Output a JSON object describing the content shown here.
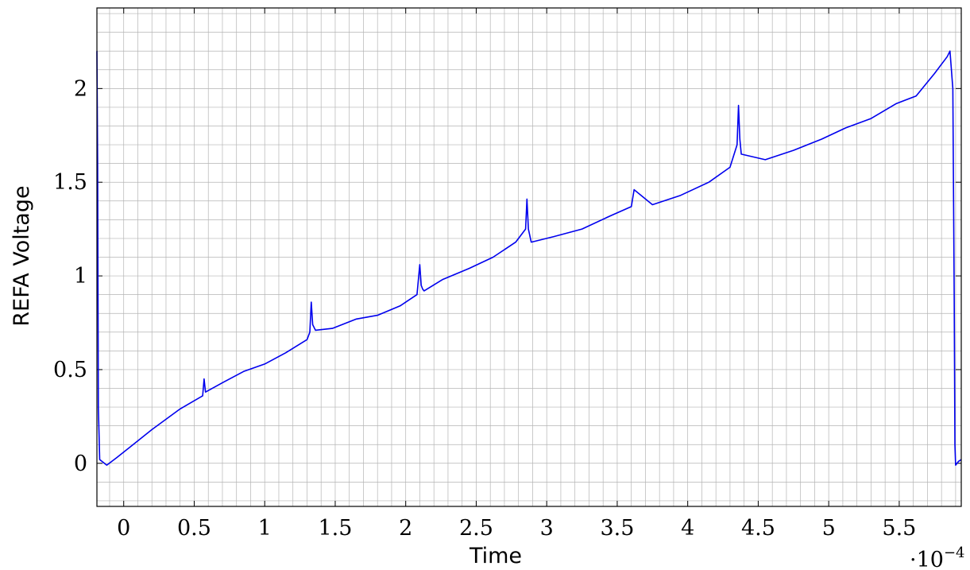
{
  "chart_data": {
    "type": "line",
    "xlabel": "Time",
    "ylabel": "REFA Voltage",
    "x_scale_label": "·10",
    "x_scale_exponent": "−4",
    "x_scale_factor": 0.0001,
    "xlim": [
      -1.9e-05,
      0.000594
    ],
    "ylim": [
      -0.23,
      2.43
    ],
    "grid": true,
    "legend": "none",
    "x_ticks": [
      {
        "value": 0,
        "label": "0"
      },
      {
        "value": 5e-05,
        "label": "0.5"
      },
      {
        "value": 0.0001,
        "label": "1"
      },
      {
        "value": 0.00015,
        "label": "1.5"
      },
      {
        "value": 0.0002,
        "label": "2"
      },
      {
        "value": 0.00025,
        "label": "2.5"
      },
      {
        "value": 0.0003,
        "label": "3"
      },
      {
        "value": 0.00035,
        "label": "3.5"
      },
      {
        "value": 0.0004,
        "label": "4"
      },
      {
        "value": 0.00045,
        "label": "4.5"
      },
      {
        "value": 0.0005,
        "label": "5"
      },
      {
        "value": 0.00055,
        "label": "5.5"
      }
    ],
    "y_ticks": [
      {
        "value": 0,
        "label": "0"
      },
      {
        "value": 0.5,
        "label": "0.5"
      },
      {
        "value": 1,
        "label": "1"
      },
      {
        "value": 1.5,
        "label": "1.5"
      },
      {
        "value": 2,
        "label": "2"
      }
    ],
    "colors": {
      "series": "#0000ee",
      "grid": "#b4b4b4",
      "axis": "#000000"
    },
    "series": [
      {
        "x": [
          -1.9e-05,
          -1.85e-05,
          -1.8e-05,
          -1.7e-05,
          -1.2e-05,
          -5e-06,
          5e-06,
          2e-05,
          4e-05,
          5.6e-05,
          5.7e-05,
          5.8e-05,
          7e-05,
          8.5e-05,
          0.0001,
          0.000115,
          0.00013,
          0.000132,
          0.000133,
          0.000134,
          0.000136,
          0.000148,
          0.000165,
          0.00018,
          0.000196,
          0.000208,
          0.00021,
          0.000211,
          0.000212,
          0.000213,
          0.000226,
          0.000245,
          0.000262,
          0.000278,
          0.000285,
          0.000286,
          0.000287,
          0.000289,
          0.000305,
          0.000325,
          0.000345,
          0.00036,
          0.000362,
          0.000375,
          0.000395,
          0.000415,
          0.00043,
          0.000435,
          0.000436,
          0.000437,
          0.000438,
          0.000455,
          0.000475,
          0.000495,
          0.000512,
          0.00053,
          0.000548,
          0.000562,
          0.000575,
          0.000584,
          0.000586,
          0.000588,
          0.000589,
          0.0005895,
          0.00059,
          0.000592,
          0.000594
        ],
        "y": [
          2.2,
          1.6,
          0.3,
          0.02,
          -0.01,
          0.03,
          0.09,
          0.18,
          0.29,
          0.36,
          0.45,
          0.38,
          0.43,
          0.49,
          0.53,
          0.59,
          0.66,
          0.7,
          0.86,
          0.74,
          0.71,
          0.72,
          0.77,
          0.79,
          0.84,
          0.9,
          1.06,
          0.95,
          0.93,
          0.92,
          0.98,
          1.04,
          1.1,
          1.18,
          1.25,
          1.41,
          1.25,
          1.18,
          1.21,
          1.25,
          1.32,
          1.37,
          1.46,
          1.38,
          1.43,
          1.5,
          1.58,
          1.7,
          1.91,
          1.73,
          1.65,
          1.62,
          1.67,
          1.73,
          1.79,
          1.84,
          1.92,
          1.96,
          2.08,
          2.17,
          2.2,
          2.0,
          0.9,
          0.1,
          -0.01,
          0.01,
          0.02
        ]
      }
    ]
  }
}
